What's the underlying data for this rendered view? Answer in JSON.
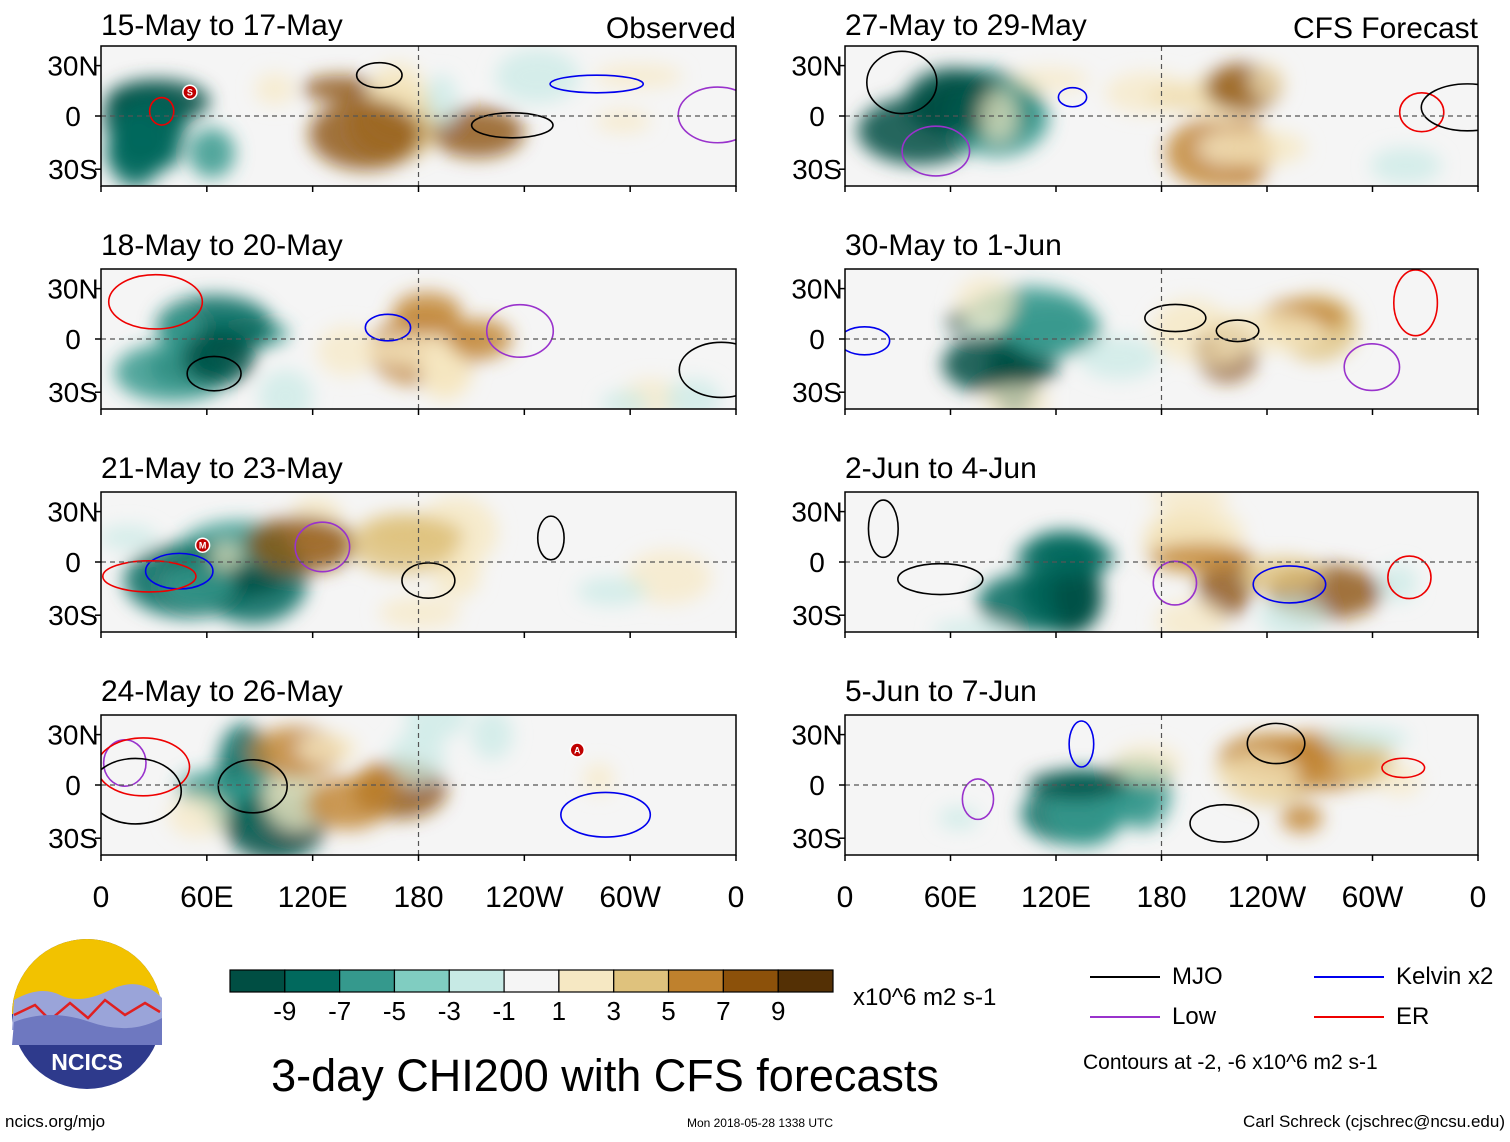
{
  "chart_data": {
    "type": "heatmap",
    "title": "3-day CHI200 with CFS forecasts",
    "panel_columns": [
      {
        "label": "Observed",
        "panels": [
          {
            "period": "15-May to 17-May",
            "markers": [
              "S"
            ]
          },
          {
            "period": "18-May to 20-May",
            "markers": []
          },
          {
            "period": "21-May to 23-May",
            "markers": [
              "M"
            ]
          },
          {
            "period": "24-May to 26-May",
            "markers": [
              "A"
            ]
          }
        ]
      },
      {
        "label": "CFS Forecast",
        "panels": [
          {
            "period": "27-May to 29-May",
            "markers": []
          },
          {
            "period": "30-May to 1-Jun",
            "markers": []
          },
          {
            "period": "2-Jun to 4-Jun",
            "markers": []
          },
          {
            "period": "5-Jun to 7-Jun",
            "markers": []
          }
        ]
      }
    ],
    "y_ticks": [
      "30N",
      "0",
      "30S"
    ],
    "x_ticks": [
      "0",
      "60E",
      "120E",
      "180",
      "120W",
      "60W",
      "0"
    ],
    "colorbar": {
      "labels": [
        "-9",
        "-7",
        "-5",
        "-3",
        "-1",
        "1",
        "3",
        "5",
        "7",
        "9"
      ],
      "colors": [
        "#004e43",
        "#01695d",
        "#35998d",
        "#80cdc1",
        "#c7eae5",
        "#f5f5f5",
        "#f6e8c3",
        "#dfc27d",
        "#bf812d",
        "#8c510a",
        "#543005"
      ],
      "units": "x10^6 m2 s-1"
    },
    "legend": [
      {
        "name": "MJO",
        "color": "#000000"
      },
      {
        "name": "Kelvin x2",
        "color": "#0000ee"
      },
      {
        "name": "Low",
        "color": "#9932cc"
      },
      {
        "name": "ER",
        "color": "#ee0000"
      }
    ],
    "contour_note": "Contours at -2, -6 x10^6 m2 s-1"
  },
  "footer": {
    "org": "NCICS",
    "url": "ncics.org/mjo",
    "timestamp": "Mon 2018-05-28 1338 UTC",
    "author": "Carl Schreck (cjschrec@ncsu.edu)"
  }
}
